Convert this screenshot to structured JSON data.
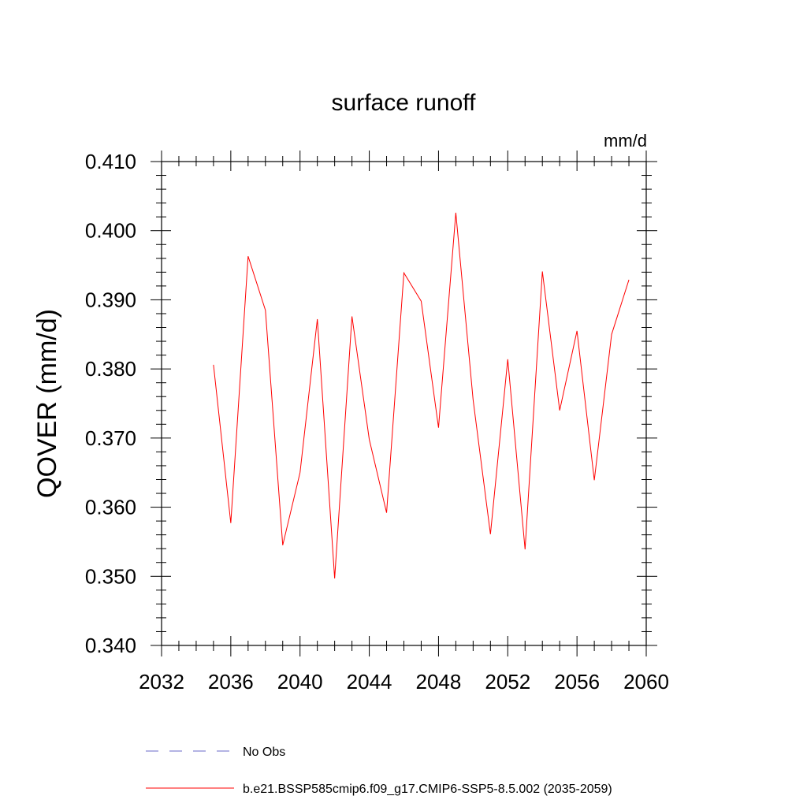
{
  "chart_data": {
    "type": "line",
    "title": "surface runoff",
    "units_label": "mm/d",
    "ylabel": "QOVER  (mm/d)",
    "xlabel": "",
    "xlim": [
      2032,
      2060
    ],
    "ylim": [
      0.34,
      0.41
    ],
    "x_ticks": [
      2032,
      2036,
      2040,
      2044,
      2048,
      2052,
      2056,
      2060
    ],
    "x_tick_labels": [
      "2032",
      "2036",
      "2040",
      "2044",
      "2048",
      "2052",
      "2056",
      "2060"
    ],
    "y_ticks": [
      0.34,
      0.35,
      0.36,
      0.37,
      0.38,
      0.39,
      0.4,
      0.41
    ],
    "y_tick_labels": [
      "0.340",
      "0.350",
      "0.360",
      "0.370",
      "0.380",
      "0.390",
      "0.400",
      "0.410"
    ],
    "grid": false,
    "legend_position": "bottom",
    "series": [
      {
        "name": "b.e21.BSSP585cmip6.f09_g17.CMIP6-SSP5-8.5.002 (2035-2059)",
        "color": "#ff0000",
        "style": "solid",
        "x": [
          2035,
          2036,
          2037,
          2038,
          2039,
          2040,
          2041,
          2042,
          2043,
          2044,
          2045,
          2046,
          2047,
          2048,
          2049,
          2050,
          2051,
          2052,
          2053,
          2054,
          2055,
          2056,
          2057,
          2058,
          2059
        ],
        "y": [
          0.3806,
          0.3577,
          0.3963,
          0.3885,
          0.3545,
          0.365,
          0.3872,
          0.3497,
          0.3876,
          0.3698,
          0.3592,
          0.3939,
          0.3898,
          0.3715,
          0.4026,
          0.3755,
          0.3561,
          0.3814,
          0.3539,
          0.3941,
          0.374,
          0.3855,
          0.3639,
          0.385,
          0.3929
        ]
      }
    ],
    "legend": [
      {
        "label": "No Obs",
        "color": "#6a6ac8",
        "style": "dashed"
      },
      {
        "label": "b.e21.BSSP585cmip6.f09_g17.CMIP6-SSP5-8.5.002 (2035-2059)",
        "color": "#ff0000",
        "style": "solid"
      }
    ]
  }
}
